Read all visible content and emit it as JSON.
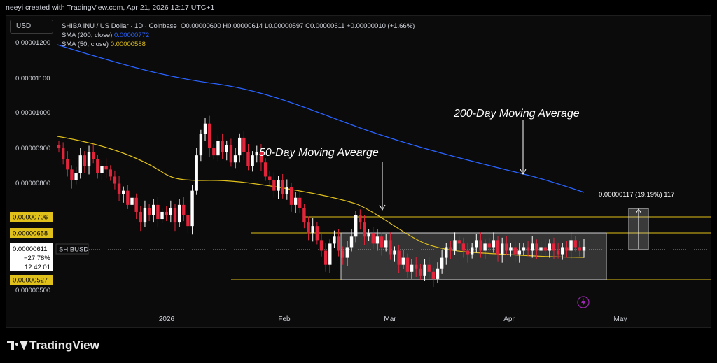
{
  "credit": "neeyi created with TradingView.com, Apr 21, 2026 12:17 UTC+1",
  "currency_button": "USD",
  "legend": {
    "symbol": "SHIBA INU / US Dollar · 1D · Coinbase",
    "o_label": "O",
    "o": "0.00000600",
    "h_label": "H",
    "h": "0.00000614",
    "l_label": "L",
    "l": "0.00000597",
    "c_label": "C",
    "c": "0.00000611",
    "change": "+0.00000010 (+1.66%)",
    "sma200_label": "SMA (200, close)",
    "sma200_value": "0.00000772",
    "sma50_label": "SMA (50, close)",
    "sma50_value": "0.00000588"
  },
  "annotations": {
    "ma200": "200-Day Moving Average",
    "ma50": "50-Day Moving Avearge",
    "range": "0.00000117 (19.19%) 117"
  },
  "price_tag": {
    "price": "0.00000611",
    "change": "−27.78%",
    "countdown": "12:42:01",
    "symbol": "SHIBUSD"
  },
  "level_tags": [
    "0.00000706",
    "0.00000658",
    "0.00000527"
  ],
  "brand": "TradingView",
  "colors": {
    "up": "#ffffff",
    "down": "#e2253b",
    "sma200": "#2962ff",
    "sma50": "#e0c01a",
    "level": "#e0c01a",
    "box": "#bdbdbd",
    "background": "#0b0b0b"
  },
  "chart_data": {
    "type": "candlestick",
    "y_ticks": [
      "0.00001200",
      "0.00001100",
      "0.00001000",
      "0.00000900",
      "0.00000800",
      "0.00000500"
    ],
    "x_ticks": [
      "2026",
      "Feb",
      "Mar",
      "Apr",
      "May"
    ],
    "horizontal_levels": [
      7.06e-06,
      6.58e-06,
      6.11e-06,
      5.27e-06
    ],
    "consolidation_box": {
      "from": "Feb 16",
      "to": "May 3",
      "top": 6.58e-06,
      "bottom": 5.27e-06
    },
    "measure": {
      "from": 6.11e-06,
      "to": 7.28e-06,
      "label": "0.00000117 (19.19%) 117"
    },
    "sma200": {
      "name": "SMA (200, close)",
      "last": 7.72e-06
    },
    "sma50": {
      "name": "SMA (50, close)",
      "last": 5.88e-06
    },
    "last_candle": {
      "open": 6e-06,
      "high": 6.14e-06,
      "low": 5.97e-06,
      "close": 6.11e-06
    },
    "closes": [
      8.9,
      8.6,
      8.3,
      8.0,
      8.2,
      8.7,
      8.4,
      8.8,
      8.6,
      8.2,
      8.4,
      8.3,
      8.1,
      7.9,
      7.6,
      7.7,
      7.3,
      7.5,
      7.1,
      6.8,
      7.2,
      7.0,
      7.3,
      6.9,
      7.1,
      7.0,
      7.2,
      6.8,
      7.3,
      7.0,
      6.7,
      7.7,
      8.7,
      9.3,
      9.6,
      8.9,
      8.7,
      9.1,
      8.8,
      9.0,
      8.5,
      8.7,
      9.2,
      8.8,
      8.4,
      8.7,
      8.8,
      8.5,
      8.1,
      8.0,
      7.7,
      8.0,
      7.6,
      7.8,
      7.3,
      7.5,
      7.2,
      6.8,
      6.5,
      6.7,
      6.3,
      6.0,
      5.6,
      6.2,
      6.4,
      6.0,
      5.8,
      6.1,
      6.4,
      7.0,
      6.8,
      6.4,
      6.5,
      6.2,
      6.4,
      6.1,
      6.3,
      5.9,
      6.0,
      5.6,
      5.8,
      5.4,
      5.6,
      5.5,
      5.3,
      5.6,
      5.4,
      5.2,
      5.5,
      5.8,
      6.1,
      6.0,
      6.3,
      6.2,
      6.0,
      5.9,
      6.1,
      6.3,
      6.0,
      6.2,
      6.1,
      6.3,
      5.9,
      6.2,
      6.0,
      6.1,
      5.9,
      6.0,
      6.1,
      6.0,
      6.2,
      6.0,
      6.1,
      6.0,
      6.2,
      6.0,
      5.9,
      6.1,
      6.0,
      6.3,
      6.1,
      6.0,
      6.11
    ]
  }
}
